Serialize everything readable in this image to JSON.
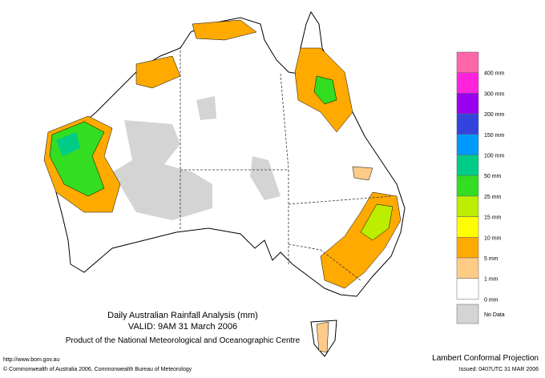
{
  "title": "Daily Australian Rainfall Analysis (mm)",
  "valid": "VALID: 9AM 31 March 2006",
  "product": "Product of the National Meteorological and Oceanographic Centre",
  "url": "http://www.bom.gov.au",
  "copyright": "© Commonwealth of Australia 2006, Commonwealth Bureau of Meteorology",
  "projection": "Lambert Conformal Projection",
  "issued": "Issued: 0407UTC 31 MAR 2006",
  "legend": [
    {
      "label": "400 mm",
      "color": "#ff66aa"
    },
    {
      "label": "300 mm",
      "color": "#ff22dd"
    },
    {
      "label": "200 mm",
      "color": "#9900ee"
    },
    {
      "label": "150 mm",
      "color": "#3344dd"
    },
    {
      "label": "100 mm",
      "color": "#0099ff"
    },
    {
      "label": "50 mm",
      "color": "#00cc88"
    },
    {
      "label": "25 mm",
      "color": "#33dd22"
    },
    {
      "label": "15 mm",
      "color": "#bbee00"
    },
    {
      "label": "10 mm",
      "color": "#ffff00"
    },
    {
      "label": "5 mm",
      "color": "#ffaa00"
    },
    {
      "label": "1 mm",
      "color": "#ffcc88"
    },
    {
      "label": "0 mm",
      "color": "#ffffff"
    },
    {
      "label": "No Data",
      "color": "#d4d4d4"
    }
  ]
}
